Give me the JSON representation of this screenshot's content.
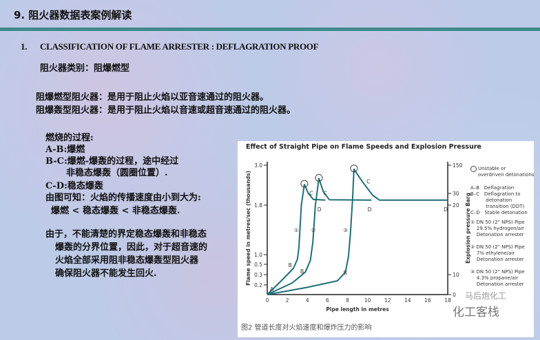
{
  "slide": {
    "title": "9. 阻火器数据表案例解读",
    "heading_num": "1.",
    "heading": "CLASSIFICATION OF FLAME ARRESTER :   DEFLAGRATION PROOF",
    "category": "阻火器类别：阻爆燃型",
    "def1": "阻爆燃型阻火器：是用于阻止火焰以亚音速通过的阻火器。",
    "def2": "阻爆轰型阻火器：是用于阻止火焰以音速或超音速通过的阻火器。",
    "process": [
      "燃烧的过程:",
      "A-B:爆燃",
      "B-C:爆燃-爆轰的过程，途中经过",
      "非稳态爆轰（圆圈位置）.",
      "C-D:稳态爆轰",
      "由图可知：火焰的传播速度由小到大为:",
      "爆燃 < 稳态爆轰 < 非稳态爆轰."
    ],
    "conclusion": [
      "由于，不能清楚的界定稳态爆轰和非稳态",
      "爆轰的分界位置，因此，对于超音速的",
      "火焰全部采用阻非稳态爆轰型阻火器",
      "确保阻火器不能发生回火."
    ],
    "caption": "图2 管道长度对火焰速度和爆炸压力的影响",
    "watermark1": "马后炮化工",
    "watermark2": "化工客栈"
  },
  "colors": {
    "curve": "#1f6d78",
    "rule": "#3e8a8c",
    "background": "#bccbe8"
  },
  "chart_data": {
    "type": "line",
    "title": "Effect of Straight Pipe on Flame Speeds and Explosion Pressure",
    "xlabel": "Pipe length in metres",
    "ylabel": "Flame speed in metres/sec (thousands)",
    "y2label": "Explosion pressure Barg",
    "xlim": [
      0,
      18
    ],
    "xticks": [
      "0",
      "2",
      "4",
      "6",
      "8",
      "10",
      "12",
      "14",
      "16",
      "18"
    ],
    "yticks": [
      "3.0",
      "1.8",
      "1.0",
      "0.5",
      "0.3",
      "0.2"
    ],
    "y2ticks": [
      "150",
      "30",
      "20",
      "10",
      "0"
    ],
    "grid": false,
    "series": [
      {
        "name": "①",
        "points": [
          [
            0,
            0
          ],
          [
            1.5,
            0.25
          ],
          [
            2.6,
            0.42
          ],
          [
            3.0,
            0.75
          ],
          [
            3.15,
            1.1
          ],
          [
            3.4,
            1.8
          ],
          [
            3.7,
            2.42
          ],
          [
            4.1,
            2.15
          ],
          [
            4.6,
            1.97
          ],
          [
            5.8,
            1.95
          ]
        ],
        "labels": [
          {
            "t": "B",
            "x": 2.1,
            "y": 0.45
          },
          {
            "t": "C",
            "x": 4.2,
            "y": 2.1
          },
          {
            "t": "D",
            "x": 5.0,
            "y": 1.7
          }
        ]
      },
      {
        "name": "②",
        "points": [
          [
            0,
            0
          ],
          [
            2.5,
            0.22
          ],
          [
            3.8,
            0.35
          ],
          [
            4.3,
            0.7
          ],
          [
            4.55,
            1.2
          ],
          [
            4.8,
            1.8
          ],
          [
            5.15,
            2.6
          ],
          [
            5.6,
            2.2
          ],
          [
            6.2,
            1.96
          ],
          [
            10.4,
            1.95
          ]
        ],
        "labels": [
          {
            "t": "B",
            "x": 3.3,
            "y": 0.33
          },
          {
            "t": "C",
            "x": 5.6,
            "y": 2.1
          },
          {
            "t": "D",
            "x": 10.0,
            "y": 1.7
          }
        ]
      },
      {
        "name": "③",
        "points": [
          [
            0,
            0
          ],
          [
            4,
            0.15
          ],
          [
            7,
            0.24
          ],
          [
            7.8,
            0.35
          ],
          [
            8.1,
            0.9
          ],
          [
            8.3,
            1.35
          ],
          [
            8.5,
            1.95
          ],
          [
            8.65,
            2.88
          ],
          [
            9.5,
            2.5
          ],
          [
            10.5,
            2.1
          ],
          [
            11.2,
            1.95
          ],
          [
            18,
            1.95
          ]
        ],
        "labels": [
          {
            "t": "B",
            "x": 7.6,
            "y": 0.3
          },
          {
            "t": "C",
            "x": 9.9,
            "y": 2.45
          },
          {
            "t": "D",
            "x": 17.6,
            "y": 1.7
          }
        ]
      }
    ],
    "point_A": "A",
    "legend": [
      "Unstable or\noverdriven detonations",
      "A–B   Deflagration\nB–C   Deflagration to\n          detonation\n          transition (DDT)\nC–D   Stable detonation",
      "① DN 50 (2\" NPS) Pipe\n    29.5% hydrogen/air\n    Detonation arrester",
      "② DN 50 (2\" NPS) Pipe\n    7% ethylene/air\n    Detonation arrester",
      "③ DN 50 (2\" NPS) Pipe\n    4.3% propane/air\n    Detonation arrester"
    ],
    "legend_placement": "right"
  }
}
